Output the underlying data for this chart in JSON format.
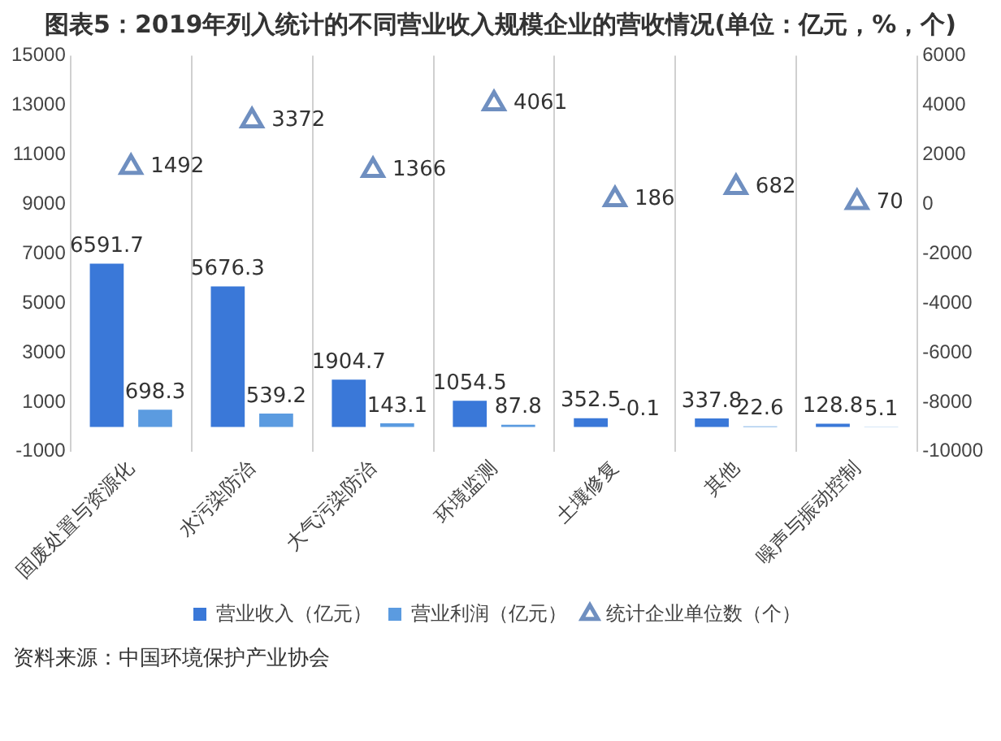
{
  "chart_data": {
    "type": "bar",
    "title": "图表5：2019年列入统计的不同营业收入规模企业的营收情况(单位：亿元，%，个)",
    "categories": [
      "固废处置与资源化",
      "水污染防治",
      "大气污染防治",
      "环境监测",
      "土壤修复",
      "其他",
      "噪声与振动控制"
    ],
    "series": [
      {
        "name": "营业收入（亿元）",
        "color": "#3a78d8",
        "values": [
          6591.7,
          5676.3,
          1904.7,
          1054.5,
          352.5,
          337.8,
          128.8
        ]
      },
      {
        "name": "营业利润（亿元）",
        "color": "#5b9be0",
        "values": [
          698.3,
          539.2,
          143.1,
          87.8,
          -0.1,
          22.6,
          5.1
        ]
      },
      {
        "name": "统计企业单位数（个）",
        "color": "#6f8fc0",
        "type": "scatter",
        "axis": "y2",
        "marker": "triangle",
        "values": [
          1492,
          3372,
          1366,
          4061,
          186,
          682,
          70
        ]
      }
    ],
    "ylim": [
      -1000,
      15000
    ],
    "yticks": [
      -1000,
      1000,
      3000,
      5000,
      7000,
      9000,
      11000,
      13000,
      15000
    ],
    "y2lim": [
      -10000,
      6000
    ],
    "y2ticks": [
      -10000,
      -8000,
      -6000,
      -4000,
      -2000,
      0,
      2000,
      4000,
      6000
    ],
    "grid": "x",
    "legend": "bottom",
    "data_labels": true,
    "annotations": [
      "资料来源：中国环境保护产业协会"
    ]
  }
}
